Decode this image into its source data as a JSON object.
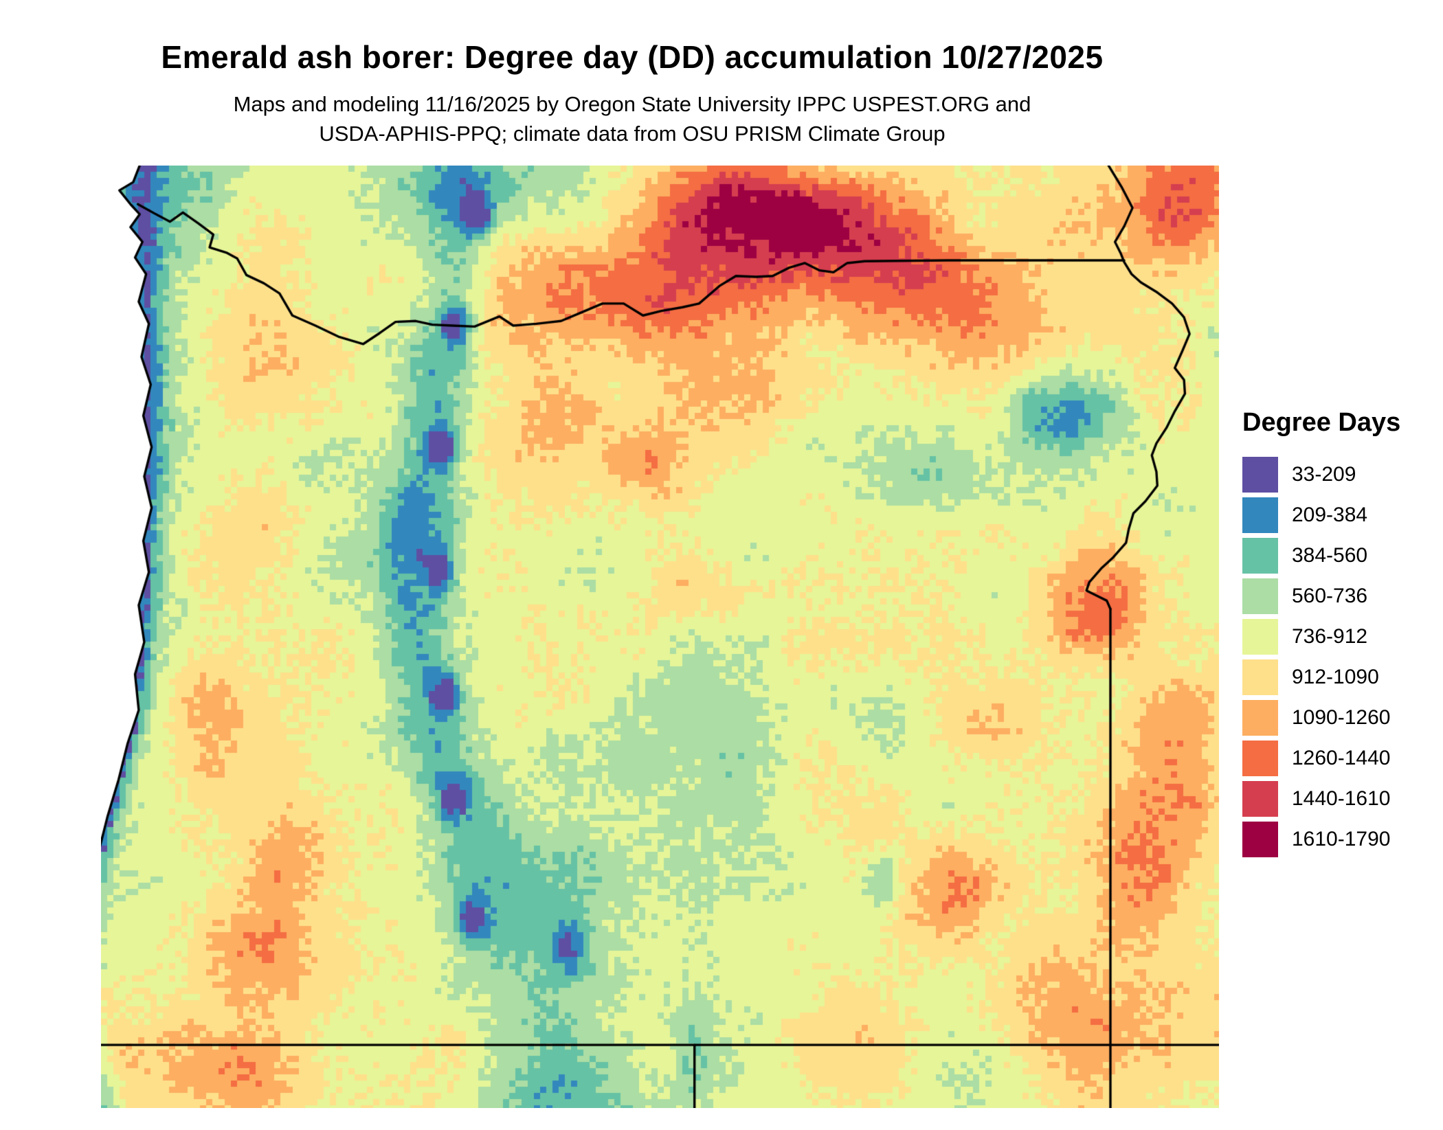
{
  "title": "Emerald ash borer: Degree day (DD) accumulation 10/27/2025",
  "subtitle_line1": "Maps and modeling 11/16/2025 by Oregon State University IPPC USPEST.ORG and",
  "subtitle_line2": "USDA-APHIS-PPQ; climate data from OSU PRISM Climate Group",
  "map": {
    "region": "Oregon and bordering areas",
    "type": "degree-day accumulation raster"
  },
  "legend": {
    "title": "Degree Days",
    "entries": [
      {
        "label": "33-209",
        "min": 33,
        "max": 209,
        "color": "#5e4fa2"
      },
      {
        "label": "209-384",
        "min": 209,
        "max": 384,
        "color": "#3288bd"
      },
      {
        "label": "384-560",
        "min": 384,
        "max": 560,
        "color": "#66c2a5"
      },
      {
        "label": "560-736",
        "min": 560,
        "max": 736,
        "color": "#abdda4"
      },
      {
        "label": "736-912",
        "min": 736,
        "max": 912,
        "color": "#e6f598"
      },
      {
        "label": "912-1090",
        "min": 912,
        "max": 1090,
        "color": "#fee08b"
      },
      {
        "label": "1090-1260",
        "min": 1090,
        "max": 1260,
        "color": "#fdae61"
      },
      {
        "label": "1260-1440",
        "min": 1260,
        "max": 1440,
        "color": "#f46d43"
      },
      {
        "label": "1440-1610",
        "min": 1440,
        "max": 1610,
        "color": "#d53e4f"
      },
      {
        "label": "1610-1790",
        "min": 1610,
        "max": 1790,
        "color": "#9e0142"
      }
    ]
  }
}
